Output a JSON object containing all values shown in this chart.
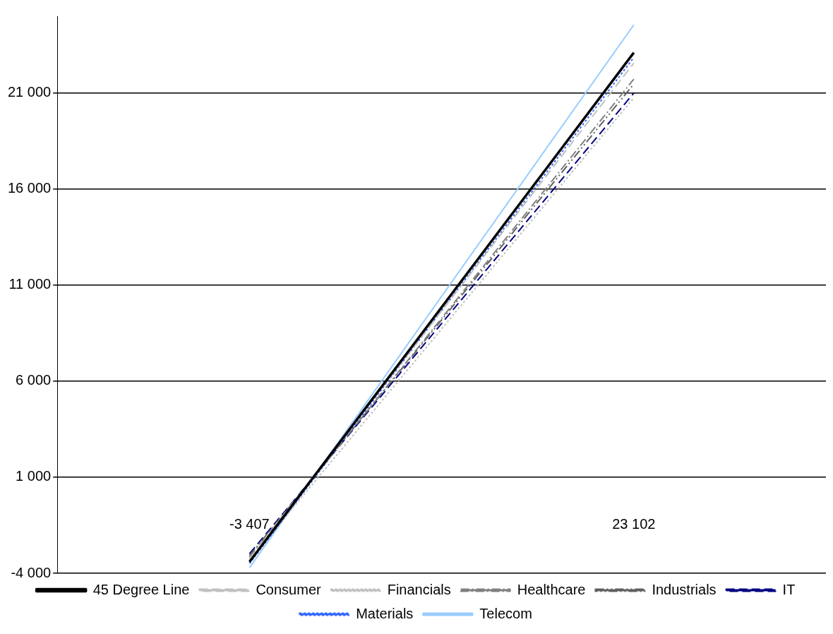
{
  "chart_data": {
    "type": "line",
    "categories": [
      "-3 407",
      "23 102"
    ],
    "series": [
      {
        "name": "45 Degree Line",
        "color": "#000000",
        "line_style": "solid",
        "values": [
          -3407,
          23102
        ]
      },
      {
        "name": "Consumer",
        "color": "#c0c0c0",
        "line_style": "dashed",
        "values": [
          -3240,
          22560
        ]
      },
      {
        "name": "Financials",
        "color": "#c0c0c0",
        "line_style": "dotted",
        "values": [
          -3310,
          20750
        ]
      },
      {
        "name": "Healthcare",
        "color": "#808080",
        "line_style": "dashdot",
        "values": [
          -3170,
          21720
        ]
      },
      {
        "name": "Industrials",
        "color": "#606060",
        "line_style": "dashdotdot",
        "values": [
          -3090,
          21470
        ]
      },
      {
        "name": "IT",
        "color": "#000080",
        "line_style": "dashed",
        "values": [
          -2985,
          21000
        ]
      },
      {
        "name": "Materials",
        "color": "#3366ff",
        "line_style": "dotted",
        "values": [
          -3490,
          22850
        ]
      },
      {
        "name": "Telecom",
        "color": "#99ccff",
        "line_style": "solid",
        "values": [
          -3710,
          24550
        ]
      }
    ],
    "ylim": [
      -4000,
      25000
    ],
    "yticks": [
      {
        "value": -4000,
        "label": "-4 000"
      },
      {
        "value": 1000,
        "label": "1 000"
      },
      {
        "value": 6000,
        "label": "6 000"
      },
      {
        "value": 11000,
        "label": "11 000"
      },
      {
        "value": 16000,
        "label": "16 000"
      },
      {
        "value": 21000,
        "label": "21 000"
      }
    ],
    "grid": "y",
    "legend": "bottom",
    "marker": "none"
  }
}
